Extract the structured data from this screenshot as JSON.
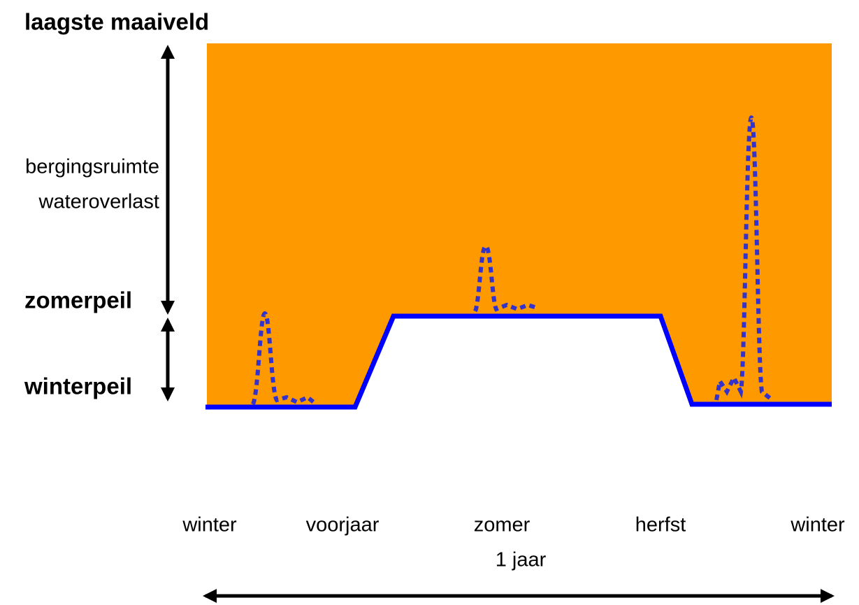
{
  "labels": {
    "top": "laagste maaiveld",
    "storage": [
      "bergingsruimte",
      "wateroverlast"
    ],
    "summer_level": "zomerpeil",
    "winter_level": "winterpeil"
  },
  "seasons": [
    "winter",
    "voorjaar",
    "zomer",
    "herfst",
    "winter"
  ],
  "period": "1 jaar"
}
